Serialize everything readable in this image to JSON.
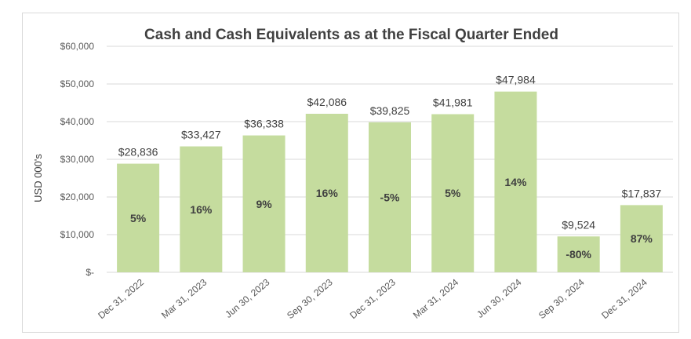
{
  "chart_data": {
    "type": "bar",
    "title": "Cash and Cash Equivalents as at the Fiscal Quarter Ended",
    "xlabel": "",
    "ylabel": "USD 000's",
    "ylim": [
      0,
      60000
    ],
    "yticks": [
      0,
      10000,
      20000,
      30000,
      40000,
      50000,
      60000
    ],
    "ytick_labels": [
      "$-",
      "$10,000",
      "$20,000",
      "$30,000",
      "$40,000",
      "$50,000",
      "$60,000"
    ],
    "grid": true,
    "bar_color": "#c5dc9e",
    "categories": [
      "Dec 31, 2022",
      "Mar 31, 2023",
      "Jun 30, 2023",
      "Sep 30, 2023",
      "Dec 31, 2023",
      "Mar 31, 2024",
      "Jun 30, 2024",
      "Sep 30, 2024",
      "Dec 31, 2024"
    ],
    "values": [
      28836,
      33427,
      36338,
      42086,
      39825,
      41981,
      47984,
      9524,
      17837
    ],
    "value_labels": [
      "$28,836",
      "$33,427",
      "$36,338",
      "$42,086",
      "$39,825",
      "$41,981",
      "$47,984",
      "$9,524",
      "$17,837"
    ],
    "pct_labels": [
      "5%",
      "16%",
      "9%",
      "16%",
      "-5%",
      "5%",
      "14%",
      "-80%",
      "87%"
    ]
  }
}
